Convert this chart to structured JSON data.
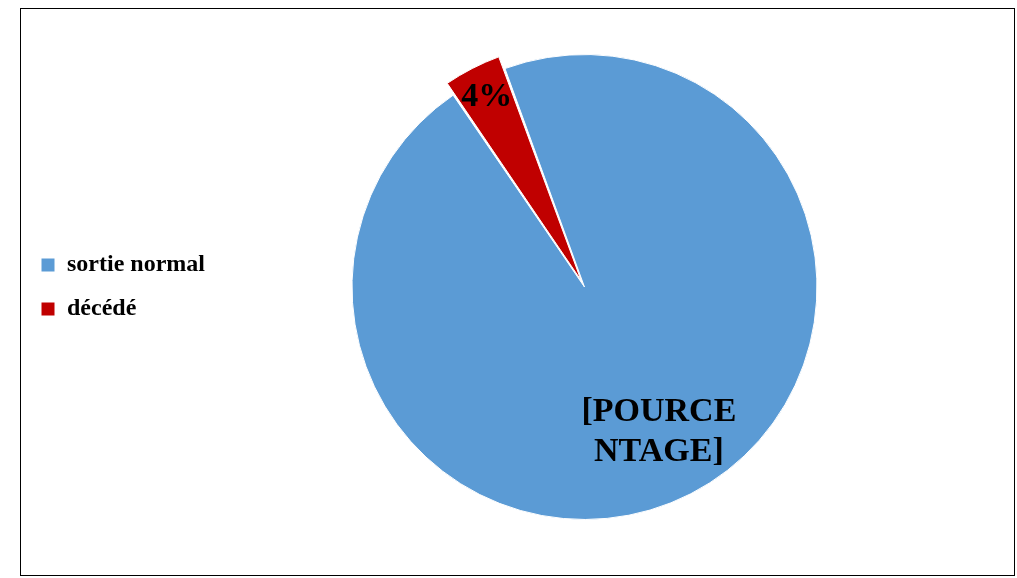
{
  "chart_data": {
    "type": "pie",
    "categories": [
      "sortie normal",
      "décédé"
    ],
    "values": [
      96,
      4
    ],
    "colors": [
      "#5b9bd5",
      "#c00000"
    ],
    "value_labels": [
      "[POURCENTAGE]",
      "4%"
    ],
    "legend": "left"
  }
}
